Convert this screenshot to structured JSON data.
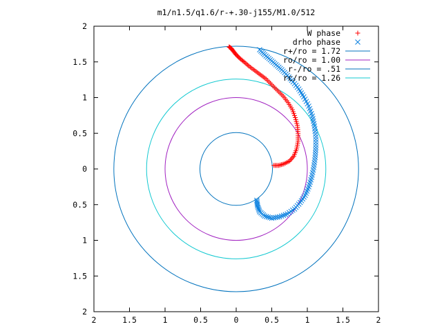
{
  "chart_data": {
    "type": "scatter",
    "title": "m1/n1.5/q1.6/r-+.30-j155/M1.0/512",
    "xlim": [
      -2,
      2
    ],
    "ylim": [
      -2,
      2
    ],
    "x_ticks": [
      -2,
      -1.5,
      -1,
      -0.5,
      0,
      0.5,
      1,
      1.5,
      2
    ],
    "y_ticks": [
      -2,
      -1.5,
      -1,
      -0.5,
      0,
      0.5,
      1,
      1.5,
      2
    ],
    "x_tick_labels": [
      "2",
      "1.5",
      "1",
      "0.5",
      "0",
      "0.5",
      "1",
      "1.5",
      "2"
    ],
    "y_tick_labels": [
      "2",
      "1.5",
      "1",
      "0.5",
      "0",
      "0.5",
      "1",
      "1.5",
      "2"
    ],
    "grid": false,
    "legend_position": "top-right",
    "circles": [
      {
        "name": "r+/ro = 1.72",
        "radius": 1.72,
        "color": "#0072bd"
      },
      {
        "name": "ro/ro = 1.00",
        "radius": 1.0,
        "color": "#a020c0"
      },
      {
        "name": "r-/ro = .51",
        "radius": 0.51,
        "color": "#0072bd"
      },
      {
        "name": "rc/ro = 1.26",
        "radius": 1.26,
        "color": "#10c8d0"
      }
    ],
    "series": [
      {
        "name": "W phase",
        "marker": "+",
        "color": "#ff0000",
        "points": [
          [
            -0.1,
            1.71
          ],
          [
            -0.07,
            1.69
          ],
          [
            -0.04,
            1.65
          ],
          [
            0.0,
            1.6
          ],
          [
            0.05,
            1.55
          ],
          [
            0.11,
            1.5
          ],
          [
            0.18,
            1.44
          ],
          [
            0.26,
            1.38
          ],
          [
            0.34,
            1.32
          ],
          [
            0.42,
            1.26
          ],
          [
            0.5,
            1.18
          ],
          [
            0.58,
            1.1
          ],
          [
            0.66,
            1.02
          ],
          [
            0.73,
            0.93
          ],
          [
            0.79,
            0.83
          ],
          [
            0.83,
            0.72
          ],
          [
            0.86,
            0.61
          ],
          [
            0.87,
            0.5
          ],
          [
            0.87,
            0.39
          ],
          [
            0.85,
            0.28
          ],
          [
            0.81,
            0.18
          ],
          [
            0.75,
            0.11
          ],
          [
            0.67,
            0.07
          ],
          [
            0.6,
            0.05
          ],
          [
            0.53,
            0.05
          ]
        ]
      },
      {
        "name": "drho phase",
        "marker": "x",
        "color": "#0a80e0",
        "points": [
          [
            0.33,
            1.67
          ],
          [
            0.4,
            1.6
          ],
          [
            0.48,
            1.53
          ],
          [
            0.56,
            1.46
          ],
          [
            0.64,
            1.39
          ],
          [
            0.72,
            1.31
          ],
          [
            0.8,
            1.22
          ],
          [
            0.88,
            1.12
          ],
          [
            0.95,
            1.01
          ],
          [
            1.02,
            0.88
          ],
          [
            1.07,
            0.74
          ],
          [
            1.1,
            0.6
          ],
          [
            1.12,
            0.45
          ],
          [
            1.12,
            0.3
          ],
          [
            1.11,
            0.16
          ],
          [
            1.09,
            0.02
          ],
          [
            1.06,
            -0.12
          ],
          [
            1.02,
            -0.25
          ],
          [
            0.97,
            -0.37
          ],
          [
            0.9,
            -0.47
          ],
          [
            0.82,
            -0.56
          ],
          [
            0.72,
            -0.63
          ],
          [
            0.61,
            -0.67
          ],
          [
            0.5,
            -0.69
          ],
          [
            0.4,
            -0.66
          ],
          [
            0.33,
            -0.6
          ],
          [
            0.3,
            -0.52
          ],
          [
            0.29,
            -0.44
          ]
        ]
      }
    ]
  }
}
